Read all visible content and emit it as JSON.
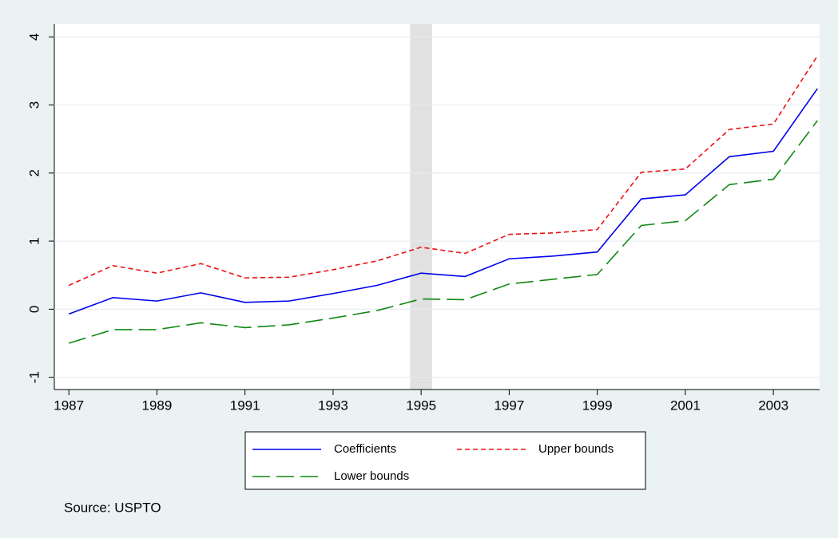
{
  "chart_data": {
    "type": "line",
    "x": [
      1987,
      1988,
      1989,
      1990,
      1991,
      1992,
      1993,
      1994,
      1995,
      1996,
      1997,
      1998,
      1999,
      2000,
      2001,
      2002,
      2003,
      2004
    ],
    "series": [
      {
        "name": "Coefficients",
        "color": "#0000ee",
        "dash": "none",
        "values": [
          -0.07,
          0.17,
          0.12,
          0.24,
          0.1,
          0.12,
          0.23,
          0.35,
          0.53,
          0.48,
          0.74,
          0.78,
          0.84,
          1.62,
          1.68,
          2.24,
          2.32,
          3.24
        ]
      },
      {
        "name": "Upper bounds",
        "color": "#ee1111",
        "dash": "6,4",
        "values": [
          0.35,
          0.64,
          0.53,
          0.67,
          0.46,
          0.47,
          0.58,
          0.71,
          0.91,
          0.82,
          1.1,
          1.12,
          1.17,
          2.01,
          2.06,
          2.64,
          2.72,
          3.72
        ]
      },
      {
        "name": "Lower bounds",
        "color": "#118811",
        "dash": "22,8",
        "values": [
          -0.5,
          -0.3,
          -0.3,
          -0.2,
          -0.27,
          -0.23,
          -0.13,
          -0.02,
          0.15,
          0.14,
          0.37,
          0.44,
          0.51,
          1.23,
          1.3,
          1.83,
          1.91,
          2.77
        ]
      }
    ],
    "xlim": [
      1986.67,
      2004.05
    ],
    "xticks": [
      1987,
      1989,
      1991,
      1993,
      1995,
      1997,
      1999,
      2001,
      2003
    ],
    "ylim": [
      -1.18,
      4.19
    ],
    "yticks": [
      -1,
      0,
      1,
      2,
      3,
      4
    ],
    "grid": true,
    "shade": [
      1994.75,
      1995.25
    ],
    "note": "Source: USPTO"
  }
}
